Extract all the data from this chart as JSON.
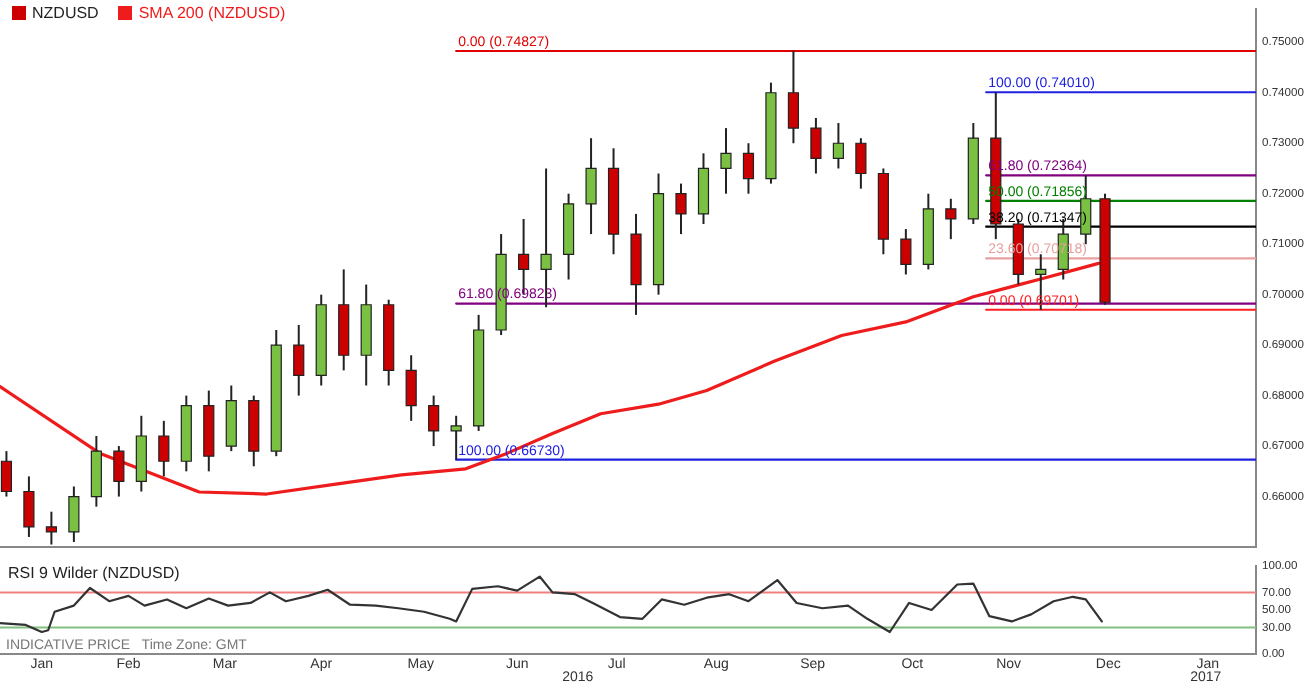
{
  "chart_data": [
    {
      "type": "candlestick",
      "legend": "top left",
      "tick_labels": "y",
      "xlim": [
        "2016-01-06",
        "2017-01-31"
      ],
      "ylim": [
        0.65,
        0.7566
      ],
      "yticks": [
        {
          "value": 0.66,
          "label": "0.66000"
        },
        {
          "value": 0.67,
          "label": "0.67000"
        },
        {
          "value": 0.68,
          "label": "0.68000"
        },
        {
          "value": 0.69,
          "label": "0.69000"
        },
        {
          "value": 0.7,
          "label": "0.70000"
        },
        {
          "value": 0.71,
          "label": "0.71000"
        },
        {
          "value": 0.72,
          "label": "0.72000"
        },
        {
          "value": 0.73,
          "label": "0.73000"
        },
        {
          "value": 0.74,
          "label": "0.74000"
        },
        {
          "value": 0.75,
          "label": "0.75000"
        }
      ],
      "series": [
        {
          "name": "NZDUSD",
          "colors": [
            "#cc0000",
            "#cc0000",
            "#cc0000",
            "#7ac143",
            "#7ac143",
            "#cc0000",
            "#7ac143",
            "#cc0000",
            "#7ac143",
            "#cc0000",
            "#7ac143",
            "#cc0000",
            "#7ac143",
            "#cc0000",
            "#7ac143",
            "#cc0000",
            "#7ac143",
            "#cc0000",
            "#cc0000",
            "#cc0000",
            "#7ac143",
            "#7ac143",
            "#7ac143",
            "#cc0000",
            "#7ac143",
            "#7ac143",
            "#7ac143",
            "#cc0000",
            "#cc0000",
            "#7ac143",
            "#cc0000",
            "#7ac143",
            "#7ac143",
            "#cc0000",
            "#7ac143",
            "#cc0000",
            "#cc0000",
            "#7ac143",
            "#cc0000",
            "#cc0000",
            "#cc0000",
            "#7ac143",
            "#cc0000",
            "#7ac143",
            "#cc0000",
            "#cc0000",
            "#7ac143",
            "#7ac143",
            "#7ac143",
            "#cc0000"
          ],
          "x": [
            "2016-01-08",
            "2016-01-15",
            "2016-01-22",
            "2016-01-29",
            "2016-02-05",
            "2016-02-12",
            "2016-02-19",
            "2016-02-26",
            "2016-03-04",
            "2016-03-11",
            "2016-03-18",
            "2016-03-25",
            "2016-04-01",
            "2016-04-08",
            "2016-04-15",
            "2016-04-22",
            "2016-04-29",
            "2016-05-06",
            "2016-05-13",
            "2016-05-20",
            "2016-05-27",
            "2016-06-03",
            "2016-06-10",
            "2016-06-17",
            "2016-06-24",
            "2016-07-01",
            "2016-07-08",
            "2016-07-15",
            "2016-07-22",
            "2016-07-29",
            "2016-08-05",
            "2016-08-12",
            "2016-08-19",
            "2016-08-26",
            "2016-09-02",
            "2016-09-09",
            "2016-09-16",
            "2016-09-23",
            "2016-09-30",
            "2016-10-07",
            "2016-10-14",
            "2016-10-21",
            "2016-10-28",
            "2016-11-04",
            "2016-11-11",
            "2016-11-18",
            "2016-11-25",
            "2016-12-02",
            "2016-12-09",
            "2016-12-15"
          ],
          "ohlc": [
            [
              0.667,
              0.669,
              0.66,
              0.661
            ],
            [
              0.661,
              0.664,
              0.652,
              0.654
            ],
            [
              0.654,
              0.657,
              0.6505,
              0.653
            ],
            [
              0.653,
              0.662,
              0.651,
              0.66
            ],
            [
              0.66,
              0.672,
              0.658,
              0.669
            ],
            [
              0.669,
              0.67,
              0.66,
              0.663
            ],
            [
              0.663,
              0.676,
              0.661,
              0.672
            ],
            [
              0.672,
              0.675,
              0.664,
              0.667
            ],
            [
              0.667,
              0.68,
              0.665,
              0.678
            ],
            [
              0.678,
              0.681,
              0.665,
              0.668
            ],
            [
              0.67,
              0.682,
              0.669,
              0.679
            ],
            [
              0.679,
              0.68,
              0.666,
              0.669
            ],
            [
              0.669,
              0.693,
              0.668,
              0.69
            ],
            [
              0.69,
              0.694,
              0.68,
              0.684
            ],
            [
              0.684,
              0.7,
              0.682,
              0.698
            ],
            [
              0.698,
              0.705,
              0.685,
              0.688
            ],
            [
              0.688,
              0.702,
              0.682,
              0.698
            ],
            [
              0.698,
              0.699,
              0.682,
              0.685
            ],
            [
              0.685,
              0.688,
              0.675,
              0.678
            ],
            [
              0.678,
              0.68,
              0.67,
              0.673
            ],
            [
              0.673,
              0.676,
              0.6673,
              0.674
            ],
            [
              0.674,
              0.696,
              0.673,
              0.693
            ],
            [
              0.693,
              0.712,
              0.692,
              0.708
            ],
            [
              0.708,
              0.715,
              0.7,
              0.705
            ],
            [
              0.705,
              0.725,
              0.6975,
              0.708
            ],
            [
              0.708,
              0.72,
              0.703,
              0.718
            ],
            [
              0.718,
              0.731,
              0.712,
              0.725
            ],
            [
              0.725,
              0.729,
              0.708,
              0.712
            ],
            [
              0.712,
              0.716,
              0.696,
              0.702
            ],
            [
              0.702,
              0.724,
              0.7,
              0.72
            ],
            [
              0.72,
              0.722,
              0.712,
              0.716
            ],
            [
              0.716,
              0.728,
              0.714,
              0.725
            ],
            [
              0.725,
              0.733,
              0.72,
              0.728
            ],
            [
              0.728,
              0.73,
              0.72,
              0.723
            ],
            [
              0.723,
              0.742,
              0.722,
              0.74
            ],
            [
              0.74,
              0.7483,
              0.73,
              0.733
            ],
            [
              0.733,
              0.735,
              0.724,
              0.727
            ],
            [
              0.727,
              0.734,
              0.725,
              0.73
            ],
            [
              0.73,
              0.731,
              0.721,
              0.724
            ],
            [
              0.724,
              0.725,
              0.708,
              0.711
            ],
            [
              0.711,
              0.713,
              0.704,
              0.706
            ],
            [
              0.706,
              0.72,
              0.705,
              0.717
            ],
            [
              0.717,
              0.719,
              0.711,
              0.715
            ],
            [
              0.715,
              0.734,
              0.714,
              0.731
            ],
            [
              0.731,
              0.7401,
              0.711,
              0.714
            ],
            [
              0.714,
              0.715,
              0.702,
              0.704
            ],
            [
              0.704,
              0.708,
              0.697,
              0.705
            ],
            [
              0.705,
              0.715,
              0.703,
              0.712
            ],
            [
              0.712,
              0.7236,
              0.71,
              0.719
            ],
            [
              0.719,
              0.72,
              0.698,
              0.6985
            ]
          ]
        },
        {
          "name": "SMA 200 (NZDUSD)",
          "type": "line",
          "color": "#ee1c1c",
          "x": [
            "2016-01-06",
            "2016-02-06",
            "2016-03-08",
            "2016-03-29",
            "2016-04-19",
            "2016-05-10",
            "2016-05-30",
            "2016-06-12",
            "2016-06-26",
            "2016-07-11",
            "2016-07-29",
            "2016-08-13",
            "2016-09-03",
            "2016-09-24",
            "2016-10-14",
            "2016-11-04",
            "2016-11-25",
            "2016-12-13"
          ],
          "values": [
            0.6818,
            0.6686,
            0.6609,
            0.6605,
            0.6624,
            0.6643,
            0.6655,
            0.6686,
            0.6725,
            0.6764,
            0.6783,
            0.681,
            0.6868,
            0.6919,
            0.6946,
            0.6996,
            0.7031,
            0.7062
          ]
        },
        {
          "type": "line",
          "color": "#e00000",
          "x": [
            "2016-05-27",
            "2017-01-31"
          ],
          "values": [
            0.74827,
            0.74827
          ]
        },
        {
          "type": "line",
          "color": "#800080",
          "x": [
            "2016-05-27",
            "2017-01-31"
          ],
          "values": [
            0.69823,
            0.69823
          ]
        },
        {
          "type": "line",
          "color": "#2020e0",
          "x": [
            "2016-05-27",
            "2017-01-31"
          ],
          "values": [
            0.6673,
            0.6673
          ]
        },
        {
          "type": "line",
          "color": "#2020e0",
          "x": [
            "2016-11-08",
            "2017-01-31"
          ],
          "values": [
            0.7401,
            0.7401
          ]
        },
        {
          "type": "line",
          "color": "#800080",
          "x": [
            "2016-11-08",
            "2017-01-31"
          ],
          "values": [
            0.72364,
            0.72364
          ]
        },
        {
          "type": "line",
          "color": "#008000",
          "x": [
            "2016-11-08",
            "2017-01-31"
          ],
          "values": [
            0.71856,
            0.71856
          ]
        },
        {
          "type": "line",
          "color": "#000000",
          "x": [
            "2016-11-08",
            "2017-01-31"
          ],
          "values": [
            0.71347,
            0.71347
          ]
        },
        {
          "type": "line",
          "color": "#e8a0a0",
          "x": [
            "2016-11-08",
            "2017-01-31"
          ],
          "values": [
            0.70718,
            0.70718
          ]
        },
        {
          "type": "line",
          "color": "#ff2020",
          "x": [
            "2016-11-08",
            "2017-01-31"
          ],
          "values": [
            0.69701,
            0.69701
          ]
        }
      ],
      "annotations": [
        {
          "text": "0.00 (0.74827)",
          "x": "2016-05-27",
          "y": 0.74827
        },
        {
          "text": "61.80 (0.69823)",
          "x": "2016-05-27",
          "y": 0.69823
        },
        {
          "text": "100.00 (0.66730)",
          "x": "2016-05-27",
          "y": 0.6673
        },
        {
          "text": "100.00 (0.74010)",
          "x": "2016-11-08",
          "y": 0.7401
        },
        {
          "text": "61.80 (0.72364)",
          "x": "2016-11-08",
          "y": 0.72364
        },
        {
          "text": "50.00 (0.71856)",
          "x": "2016-11-08",
          "y": 0.71856
        },
        {
          "text": "38.20 (0.71347)",
          "x": "2016-11-08",
          "y": 0.71347
        },
        {
          "text": "23.60 (0.70718)",
          "x": "2016-11-08",
          "y": 0.70718
        },
        {
          "text": "0.00 (0.69701)",
          "x": "2016-11-08",
          "y": 0.69701
        }
      ]
    },
    {
      "type": "line",
      "title": "RSI 9 Wilder (NZDUSD)",
      "xlim": [
        "2016-01-06",
        "2017-01-31"
      ],
      "xticks": [
        {
          "value": "2016-01-19",
          "label": "Jan"
        },
        {
          "value": "2016-02-15",
          "label": "Feb"
        },
        {
          "value": "2016-03-16",
          "label": "Mar"
        },
        {
          "value": "2016-04-15",
          "label": "Apr"
        },
        {
          "value": "2016-05-16",
          "label": "May"
        },
        {
          "value": "2016-06-15",
          "label": "Jun"
        },
        {
          "value": "2016-07-16",
          "label": "Jul"
        },
        {
          "value": "2016-08-16",
          "label": "Aug"
        },
        {
          "value": "2016-09-15",
          "label": "Sep"
        },
        {
          "value": "2016-10-16",
          "label": "Oct"
        },
        {
          "value": "2016-11-15",
          "label": "Nov"
        },
        {
          "value": "2016-12-16",
          "label": "Dec"
        },
        {
          "value": "2017-01-16",
          "label": "Jan"
        }
      ],
      "ylim": [
        0,
        100
      ],
      "yticks": [
        {
          "value": 0,
          "label": "0.00"
        },
        {
          "value": 30,
          "label": "30.00"
        },
        {
          "value": 50,
          "label": "50.00"
        },
        {
          "value": 70,
          "label": "70.00"
        },
        {
          "value": 100,
          "label": "100.00"
        }
      ],
      "ref_lines": [
        {
          "axis": "y",
          "value": 70,
          "color": "#f08080"
        },
        {
          "axis": "y",
          "value": 30,
          "color": "#80c080"
        }
      ],
      "series": [
        {
          "color": "#333333",
          "x": [
            "2016-01-06",
            "2016-01-14",
            "2016-01-19",
            "2016-01-21",
            "2016-01-23",
            "2016-01-29",
            "2016-02-03",
            "2016-02-09",
            "2016-02-15",
            "2016-02-20",
            "2016-02-27",
            "2016-03-04",
            "2016-03-11",
            "2016-03-17",
            "2016-03-24",
            "2016-03-30",
            "2016-04-04",
            "2016-04-11",
            "2016-04-17",
            "2016-04-24",
            "2016-05-02",
            "2016-05-09",
            "2016-05-17",
            "2016-05-25",
            "2016-05-27",
            "2016-06-01",
            "2016-06-09",
            "2016-06-15",
            "2016-06-22",
            "2016-06-26",
            "2016-07-03",
            "2016-07-09",
            "2016-07-17",
            "2016-07-24",
            "2016-07-30",
            "2016-08-06",
            "2016-08-13",
            "2016-08-20",
            "2016-08-26",
            "2016-09-04",
            "2016-09-10",
            "2016-09-18",
            "2016-09-26",
            "2016-10-02",
            "2016-10-09",
            "2016-10-15",
            "2016-10-22",
            "2016-10-30",
            "2016-11-04",
            "2016-11-09",
            "2016-11-16",
            "2016-11-22",
            "2016-11-29",
            "2016-12-05",
            "2016-12-09",
            "2016-12-14"
          ],
          "values": [
            35,
            33,
            25,
            27,
            48,
            55,
            75,
            60,
            66,
            55,
            62,
            52,
            63,
            55,
            58,
            70,
            60,
            66,
            73,
            56,
            55,
            52,
            48,
            40,
            37,
            74,
            77,
            72,
            88,
            70,
            68,
            57,
            42,
            40,
            62,
            56,
            64,
            68,
            60,
            84,
            58,
            52,
            55,
            40,
            25,
            58,
            50,
            79,
            80,
            43,
            37,
            45,
            60,
            65,
            62,
            37
          ]
        }
      ],
      "annotations": [
        "INDICATIVE PRICE   Time Zone: GMT",
        "2016",
        "2017"
      ]
    }
  ]
}
